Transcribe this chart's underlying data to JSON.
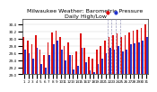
{
  "title": "Milwaukee Weather: Barometric Pressure",
  "subtitle": "Daily High/Low",
  "ylim": [
    29.0,
    30.55
  ],
  "yticks": [
    29.0,
    29.2,
    29.4,
    29.6,
    29.8,
    30.0,
    30.2,
    30.4
  ],
  "days": [
    "1",
    "2",
    "3",
    "4",
    "5",
    "6",
    "7",
    "8",
    "9",
    "10",
    "11",
    "12",
    "13",
    "14",
    "15",
    "16",
    "17",
    "18",
    "19",
    "20",
    "21",
    "22",
    "23",
    "24",
    "25",
    "26",
    "27",
    "28",
    "29",
    "30",
    "31"
  ],
  "high": [
    30.05,
    29.95,
    29.85,
    30.1,
    29.7,
    29.55,
    29.9,
    30.18,
    30.22,
    30.05,
    29.8,
    29.9,
    29.55,
    29.65,
    30.15,
    29.75,
    29.5,
    29.45,
    29.7,
    29.8,
    29.95,
    30.05,
    30.1,
    30.15,
    30.05,
    30.1,
    30.18,
    30.22,
    30.25,
    30.3,
    30.4
  ],
  "low": [
    29.7,
    29.6,
    29.45,
    29.75,
    29.3,
    29.2,
    29.55,
    29.85,
    29.95,
    29.7,
    29.4,
    29.55,
    29.15,
    29.25,
    29.75,
    29.35,
    29.1,
    29.05,
    29.3,
    29.45,
    29.6,
    29.75,
    29.7,
    29.8,
    29.65,
    29.7,
    29.85,
    29.88,
    29.9,
    29.95,
    30.05
  ],
  "high_color": "#dd1111",
  "low_color": "#2233cc",
  "bg_color": "#ffffff",
  "grid_color": "#cccccc",
  "dashed_vlines": [
    20.5,
    21.5,
    22.5,
    23.5
  ],
  "bar_width": 0.38,
  "title_fontsize": 4.5,
  "tick_fontsize": 3.0
}
